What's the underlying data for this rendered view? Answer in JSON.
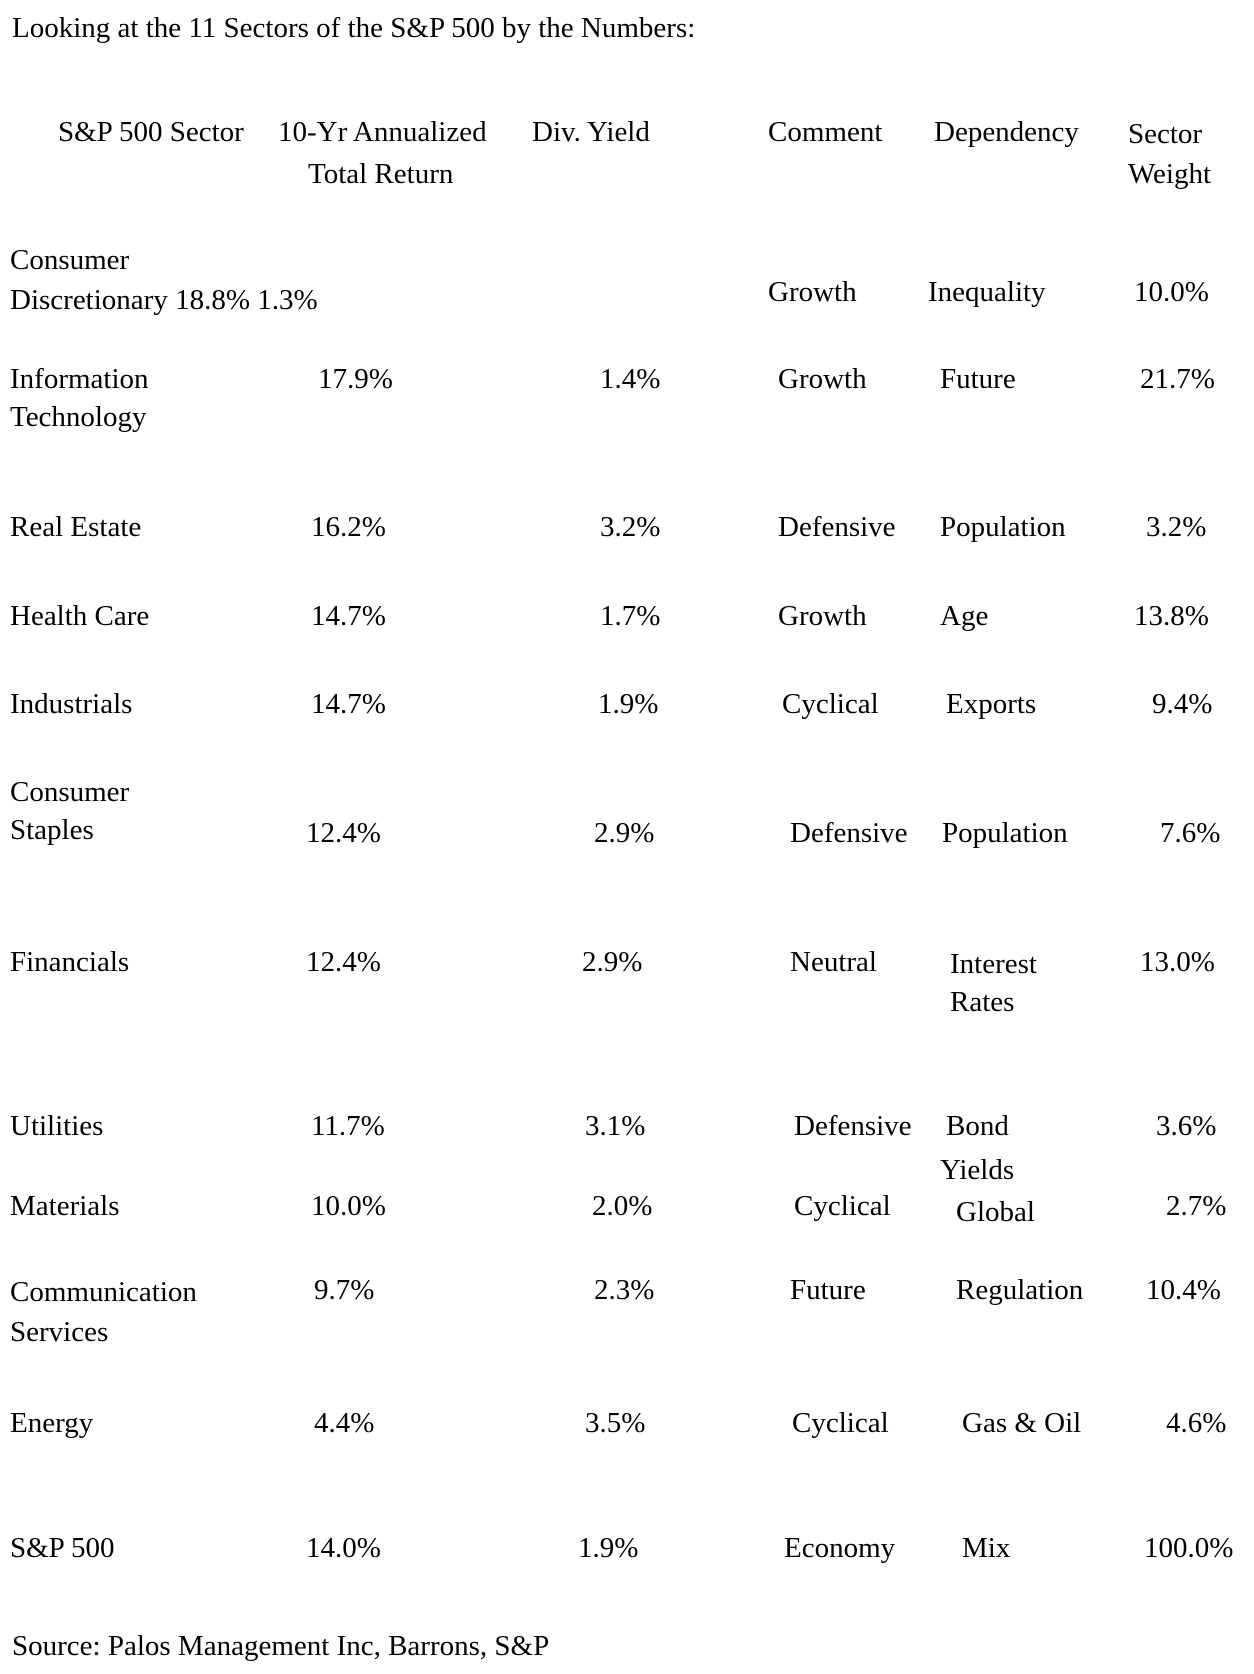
{
  "title": "Looking at the 11 Sectors of the S&P 500 by the Numbers:",
  "header": {
    "sector": "S&P 500 Sector",
    "return_line1": "10-Yr Annualized",
    "return_line2": "Total Return",
    "yield": "Div. Yield",
    "comment": "Comment",
    "dependency": "Dependency",
    "weight_line1": "Sector",
    "weight_line2": "Weight"
  },
  "rows": [
    {
      "sector_l1": "Consumer",
      "sector_l2": "Discretionary 18.8% 1.3%",
      "comment": "Growth",
      "dependency": "Inequality",
      "weight": "10.0%"
    },
    {
      "sector_l1": "Information",
      "sector_l2": "Technology",
      "ret": "17.9%",
      "yield": "1.4%",
      "comment": "Growth",
      "dependency": "Future",
      "weight": "21.7%"
    },
    {
      "sector": "Real Estate",
      "ret": "16.2%",
      "yield": "3.2%",
      "comment": "Defensive",
      "dependency": "Population",
      "weight": "3.2%"
    },
    {
      "sector": "Health Care",
      "ret": "14.7%",
      "yield": "1.7%",
      "comment": "Growth",
      "dependency": "Age",
      "weight": "13.8%"
    },
    {
      "sector": "Industrials",
      "ret": "14.7%",
      "yield": "1.9%",
      "comment": "Cyclical",
      "dependency": "Exports",
      "weight": "9.4%"
    },
    {
      "sector_l1": "Consumer",
      "sector_l2": "Staples",
      "ret": "12.4%",
      "yield": "2.9%",
      "comment": "Defensive",
      "dependency": "Population",
      "weight": "7.6%"
    },
    {
      "sector": "Financials",
      "ret": "12.4%",
      "yield": "2.9%",
      "comment": "Neutral",
      "dependency_l1": "Interest",
      "dependency_l2": "Rates",
      "weight": "13.0%"
    },
    {
      "sector": "Utilities",
      "ret": "11.7%",
      "yield": "3.1%",
      "comment": "Defensive",
      "dependency_l1": "Bond",
      "dependency_l2": "Yields",
      "weight": "3.6%"
    },
    {
      "sector": "Materials",
      "ret": "10.0%",
      "yield": "2.0%",
      "comment": "Cyclical",
      "dependency": "Global",
      "weight": "2.7%"
    },
    {
      "sector_l1": "Communication",
      "sector_l2": "Services",
      "ret": "9.7%",
      "yield": "2.3%",
      "comment": "Future",
      "dependency": "Regulation",
      "weight": "10.4%"
    },
    {
      "sector": "Energy",
      "ret": "4.4%",
      "yield": "3.5%",
      "comment": "Cyclical",
      "dependency": "Gas & Oil",
      "weight": "4.6%"
    },
    {
      "sector": "S&P 500",
      "ret": "14.0%",
      "yield": "1.9%",
      "comment": "Economy",
      "dependency": "Mix",
      "weight": "100.0%"
    }
  ],
  "source": "Source: Palos Management Inc, Barrons, S&P"
}
